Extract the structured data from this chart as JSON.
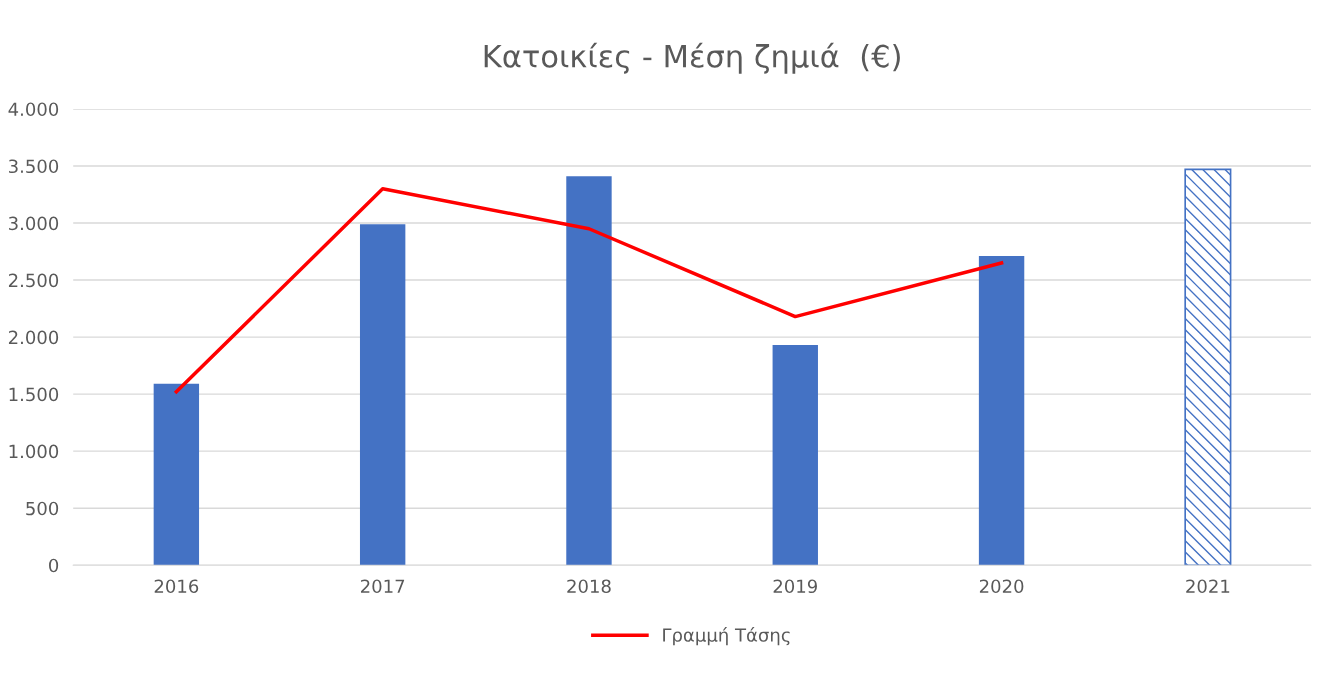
{
  "chart_data": {
    "type": "bar",
    "title": "Κατοικίες - Μέση ζημιά  (€)",
    "categories": [
      "2016",
      "2017",
      "2018",
      "2019",
      "2020",
      "2021"
    ],
    "series": [
      {
        "color": "#4472c4",
        "values": [
          1590,
          2990,
          3410,
          1930,
          2710,
          null
        ]
      },
      {
        "color": "#4472c4",
        "values": [
          null,
          null,
          null,
          null,
          null,
          3470
        ]
      },
      {
        "type": "line",
        "name": "Γραμμή Τάσης",
        "color": "#ff0000",
        "values": [
          1520,
          3300,
          2950,
          2180,
          2650,
          null
        ]
      }
    ],
    "ylim": [
      0,
      4000
    ],
    "yticks": [
      {
        "value": 0,
        "label": "0"
      },
      {
        "value": 500,
        "label": "500"
      },
      {
        "value": 1000,
        "label": "1.000"
      },
      {
        "value": 1500,
        "label": "1.500"
      },
      {
        "value": 2000,
        "label": "2.000"
      },
      {
        "value": 2500,
        "label": "2.500"
      },
      {
        "value": 3000,
        "label": "3.000"
      },
      {
        "value": 3500,
        "label": "3.500"
      },
      {
        "value": 4000,
        "label": "4.000"
      }
    ],
    "grid": "y",
    "legend": "bottom"
  }
}
